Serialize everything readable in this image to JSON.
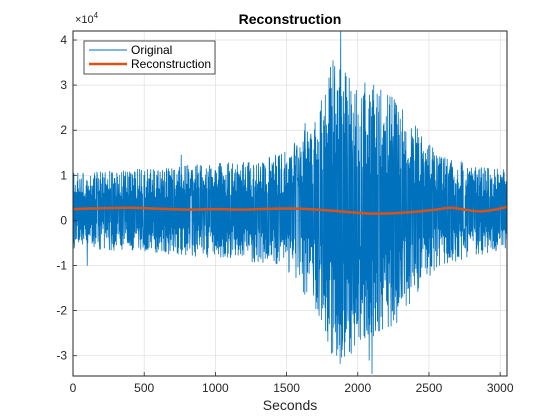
{
  "chart_data": {
    "type": "line",
    "title": "Reconstruction",
    "xlabel": "Seconds",
    "ylabel": "",
    "y_exponent_base": "×10",
    "y_exponent_power": "4",
    "xlim": [
      0,
      3048
    ],
    "ylim": [
      -3.45,
      4.2
    ],
    "x_ticks": [
      0,
      500,
      1000,
      1500,
      2000,
      2500,
      3000
    ],
    "y_ticks": [
      -3,
      -2,
      -1,
      0,
      1,
      2,
      3,
      4
    ],
    "grid": true,
    "legend_position": "top-left",
    "series": [
      {
        "name": "Original",
        "color": "#0072BD",
        "samples": 3048,
        "envelope": [
          {
            "x": 0,
            "amp": 0.85
          },
          {
            "x": 400,
            "amp": 0.9
          },
          {
            "x": 800,
            "amp": 1.0
          },
          {
            "x": 1200,
            "amp": 1.1
          },
          {
            "x": 1500,
            "amp": 1.3
          },
          {
            "x": 1700,
            "amp": 2.2
          },
          {
            "x": 1850,
            "amp": 3.6
          },
          {
            "x": 1950,
            "amp": 3.2
          },
          {
            "x": 2100,
            "amp": 2.8
          },
          {
            "x": 2250,
            "amp": 2.6
          },
          {
            "x": 2400,
            "amp": 1.9
          },
          {
            "x": 2550,
            "amp": 1.3
          },
          {
            "x": 2800,
            "amp": 1.0
          },
          {
            "x": 3048,
            "amp": 0.9
          }
        ],
        "peaks": [
          {
            "x": 1880,
            "y": 4.25
          },
          {
            "x": 1860,
            "y": -2.85
          },
          {
            "x": 2100,
            "y": -3.4
          },
          {
            "x": 2050,
            "y": 3.05
          },
          {
            "x": 2080,
            "y": -3.1
          },
          {
            "x": 1630,
            "y": 2.15
          },
          {
            "x": 760,
            "y": 1.45
          },
          {
            "x": 100,
            "y": -1.0
          }
        ]
      },
      {
        "name": "Reconstruction",
        "color": "#D95319",
        "points": [
          [
            0,
            0.25
          ],
          [
            200,
            0.27
          ],
          [
            400,
            0.28
          ],
          [
            600,
            0.26
          ],
          [
            800,
            0.24
          ],
          [
            1000,
            0.25
          ],
          [
            1200,
            0.24
          ],
          [
            1400,
            0.26
          ],
          [
            1600,
            0.26
          ],
          [
            1800,
            0.22
          ],
          [
            1950,
            0.18
          ],
          [
            2100,
            0.15
          ],
          [
            2250,
            0.16
          ],
          [
            2400,
            0.19
          ],
          [
            2550,
            0.24
          ],
          [
            2650,
            0.28
          ],
          [
            2750,
            0.24
          ],
          [
            2850,
            0.2
          ],
          [
            2950,
            0.23
          ],
          [
            3048,
            0.3
          ]
        ]
      }
    ]
  }
}
